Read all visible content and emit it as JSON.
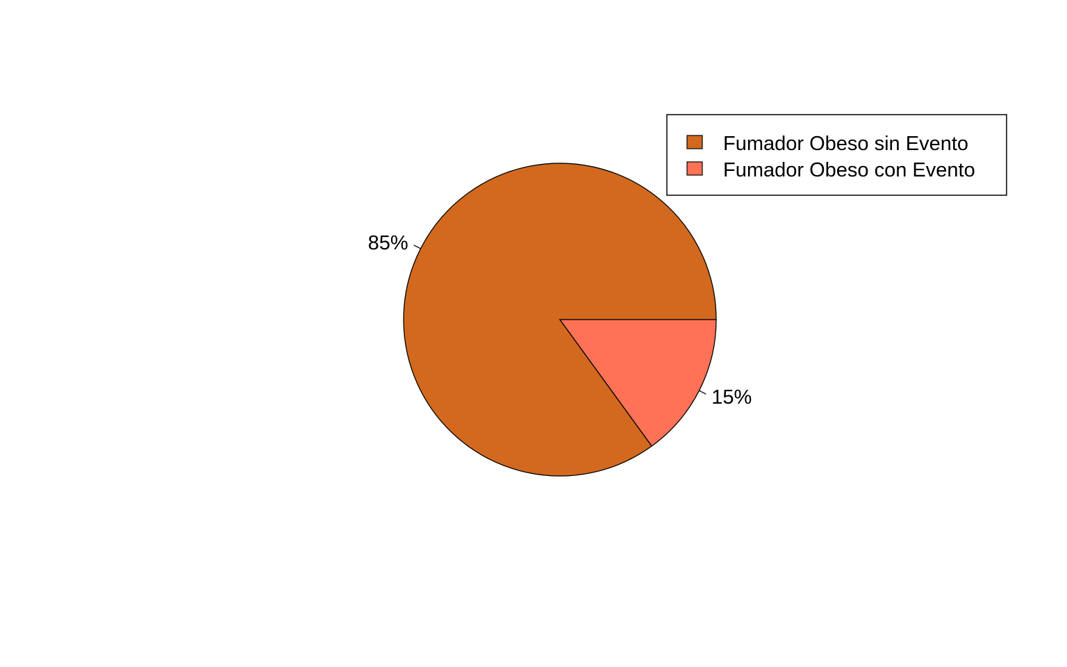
{
  "chart_data": {
    "type": "pie",
    "categories": [
      "Fumador Obeso sin Evento",
      "Fumador Obeso con Evento"
    ],
    "values": [
      85,
      15
    ],
    "labels": [
      "85%",
      "15%"
    ],
    "colors": [
      "#D2691E",
      "#FF7256"
    ],
    "title": "",
    "legend_position": "top-right",
    "legend": [
      "Fumador Obeso sin Evento",
      "Fumador Obeso con Evento"
    ]
  }
}
